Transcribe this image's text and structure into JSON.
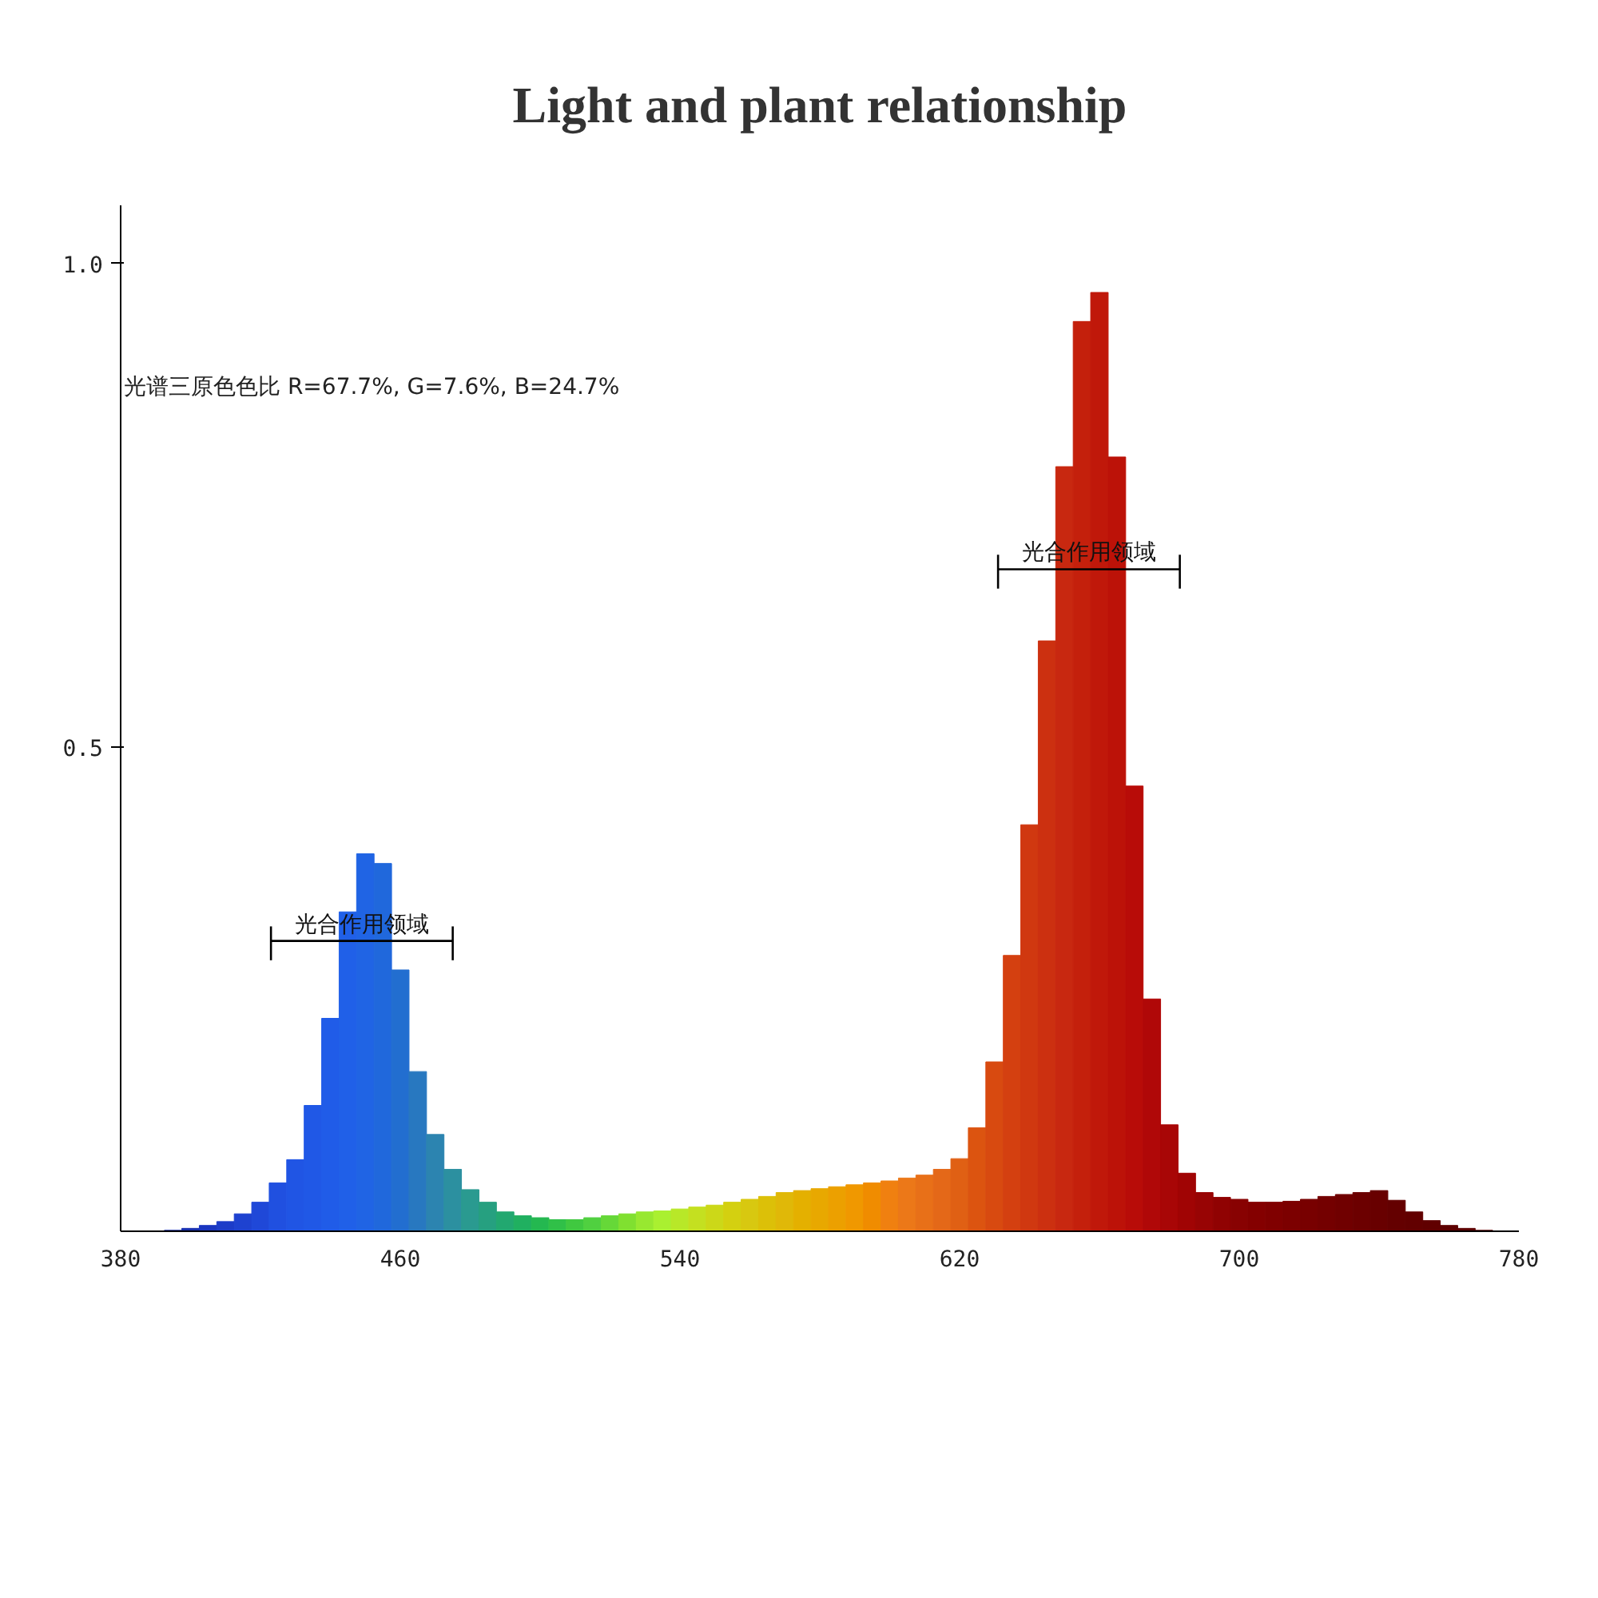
{
  "chart_data": {
    "type": "bar",
    "title": "Light and plant relationship",
    "x": [
      395,
      400,
      405,
      410,
      415,
      420,
      425,
      430,
      435,
      440,
      445,
      450,
      455,
      460,
      465,
      470,
      475,
      480,
      485,
      490,
      495,
      500,
      505,
      510,
      515,
      520,
      525,
      530,
      535,
      540,
      545,
      550,
      555,
      560,
      565,
      570,
      575,
      580,
      585,
      590,
      595,
      600,
      605,
      610,
      615,
      620,
      625,
      630,
      635,
      640,
      645,
      650,
      655,
      660,
      665,
      670,
      675,
      680,
      685,
      690,
      695,
      700,
      705,
      710,
      715,
      720,
      725,
      730,
      735,
      740,
      745,
      750,
      755,
      760,
      765,
      770
    ],
    "values": [
      0.001,
      0.003,
      0.006,
      0.01,
      0.018,
      0.03,
      0.05,
      0.074,
      0.13,
      0.22,
      0.33,
      0.39,
      0.38,
      0.27,
      0.165,
      0.1,
      0.064,
      0.043,
      0.03,
      0.02,
      0.016,
      0.014,
      0.012,
      0.012,
      0.014,
      0.016,
      0.018,
      0.02,
      0.021,
      0.023,
      0.025,
      0.027,
      0.03,
      0.033,
      0.036,
      0.04,
      0.042,
      0.044,
      0.046,
      0.048,
      0.05,
      0.052,
      0.055,
      0.058,
      0.064,
      0.075,
      0.107,
      0.175,
      0.285,
      0.42,
      0.61,
      0.79,
      0.94,
      0.97,
      0.8,
      0.46,
      0.24,
      0.11,
      0.06,
      0.04,
      0.035,
      0.033,
      0.03,
      0.03,
      0.031,
      0.033,
      0.036,
      0.038,
      0.04,
      0.042,
      0.032,
      0.02,
      0.011,
      0.006,
      0.003,
      0.001
    ],
    "colors": [
      "#1428a0",
      "#1830b0",
      "#1a36c0",
      "#1c3cc8",
      "#1e42d0",
      "#1f48d8",
      "#2050e0",
      "#2055e4",
      "#2058e6",
      "#205ce8",
      "#2060e8",
      "#2064e4",
      "#2068dc",
      "#226ed0",
      "#2878c0",
      "#2c84b0",
      "#2c90a0",
      "#2a9a90",
      "#26a080",
      "#22a870",
      "#20b060",
      "#24b850",
      "#30c048",
      "#40c840",
      "#50d040",
      "#66d838",
      "#80e030",
      "#98e830",
      "#aaf030",
      "#b8e828",
      "#c4e020",
      "#ccd818",
      "#d4d010",
      "#d8c810",
      "#dcc008",
      "#e0b808",
      "#e4b000",
      "#e8a800",
      "#eca000",
      "#f09800",
      "#f08c00",
      "#f08010",
      "#ec7818",
      "#e87018",
      "#e46818",
      "#e06014",
      "#dc5410",
      "#d84a10",
      "#d44010",
      "#d03810",
      "#cc3010",
      "#c82810",
      "#c4200c",
      "#c0180a",
      "#bc1208",
      "#b80c08",
      "#b00808",
      "#a80606",
      "#a00404",
      "#980404",
      "#900202",
      "#880202",
      "#840000",
      "#800000",
      "#7c0000",
      "#780000",
      "#740000",
      "#700000",
      "#6c0000",
      "#680000",
      "#640000",
      "#620000",
      "#600000",
      "#5e0000",
      "#5c0000",
      "#5a0000"
    ],
    "xlim": [
      380,
      780
    ],
    "ylim": [
      0,
      1.06
    ],
    "xticks": [
      380,
      460,
      540,
      620,
      700,
      780
    ],
    "yticks": [
      {
        "value": 0.5,
        "label": "0.5"
      },
      {
        "value": 1.0,
        "label": "1.0"
      }
    ],
    "grid": false,
    "annotations": [
      "光谱三原色色比 R=67.7%,   G=7.6%,   B=24.7%",
      {
        "text": "光合作用领域",
        "x": 449,
        "y": 0.3
      },
      {
        "text": "光合作用领域",
        "x": 657,
        "y": 0.684
      }
    ]
  }
}
